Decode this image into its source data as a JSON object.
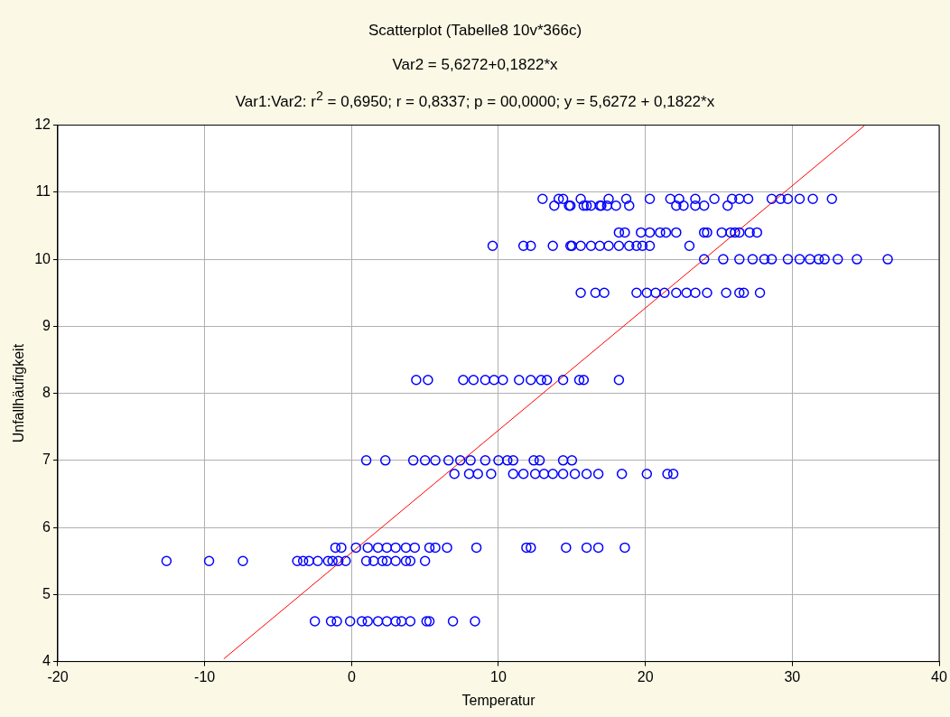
{
  "chart_data": {
    "type": "scatter",
    "title": "Scatterplot (Tabelle8 10v*366c)",
    "subtitle": "Var2 = 5,6272+0,1822*x",
    "annotations": [
      "Var1:Var2:  r$^{2}$ = 0,6950;  r = 0,8337; p = 00,0000;  y = 5,6272 + 0,1822*x"
    ],
    "xlabel": "Temperatur",
    "ylabel": "Unfallhäufigkeit",
    "xlim": [
      -20,
      40
    ],
    "xticks": [
      -20,
      -10,
      0,
      10,
      20,
      30,
      40
    ],
    "ylim": [
      4,
      12
    ],
    "yticks": [
      4,
      5,
      6,
      7,
      8,
      9,
      10,
      11,
      12
    ],
    "grid": true,
    "series": [
      {
        "color": "#0000ff",
        "marker": "circle",
        "x": [
          -2.5,
          -1.4,
          -1,
          -0.1,
          0.7,
          1.1,
          1.8,
          2.4,
          3,
          3.4,
          4,
          5.1,
          5.3,
          6.9,
          8.4,
          -12.6,
          -9.7,
          -7.4,
          -3.7,
          -3.3,
          -2.9,
          -2.3,
          -1.6,
          -1.3,
          -0.9,
          -0.4,
          1,
          1.5,
          2.1,
          2.4,
          3,
          3.7,
          4,
          5,
          -1.1,
          -0.7,
          0.3,
          1.1,
          1.8,
          2.4,
          3,
          3.7,
          4.3,
          5.3,
          5.7,
          6.5,
          8.5,
          11.9,
          12.2,
          14.6,
          16,
          16.8,
          18.6,
          7,
          8,
          8.6,
          9.5,
          11,
          11.7,
          12.5,
          13.1,
          13.7,
          14.4,
          15.2,
          16,
          16.8,
          18.4,
          20.1,
          21.5,
          21.9,
          1,
          2.3,
          4.2,
          5,
          5.7,
          6.6,
          7.4,
          8.1,
          9.1,
          10,
          10.6,
          11,
          12.4,
          12.8,
          14.4,
          15,
          4.4,
          5.2,
          7.6,
          8.3,
          9.1,
          9.7,
          10.3,
          11.4,
          12.2,
          12.9,
          13.3,
          14.4,
          15.5,
          15.8,
          18.2,
          15.6,
          16.6,
          17.2,
          19.4,
          20.1,
          20.7,
          21.3,
          22.1,
          22.8,
          23.4,
          24.2,
          25.5,
          26.4,
          26.7,
          27.8,
          24,
          25.3,
          26.4,
          27.3,
          28.1,
          28.6,
          29.7,
          30.5,
          31.2,
          31.8,
          32.2,
          33.1,
          34.4,
          36.5,
          9.6,
          11.7,
          12.2,
          13.7,
          14.9,
          15,
          15.6,
          16.3,
          16.9,
          17.5,
          18.2,
          18.9,
          19.4,
          19.8,
          20.3,
          23,
          18.2,
          18.6,
          19.7,
          20.3,
          21,
          21.4,
          22.1,
          24,
          24.2,
          25.2,
          25.8,
          26.1,
          26.4,
          27.1,
          27.6,
          13,
          14.1,
          14.4,
          15.6,
          17.5,
          18.7,
          20.3,
          21.7,
          22.3,
          23.4,
          24.7,
          25.9,
          26.4,
          27,
          28.6,
          29.2,
          29.7,
          30.5,
          31.4,
          32.7,
          13.8,
          14.9,
          16,
          16.9,
          14.8,
          15.8,
          16.3,
          17,
          17.4,
          18,
          18.9,
          22.1,
          22.6,
          23.4,
          24,
          25.6
        ],
        "values": [
          4.6,
          4.6,
          4.6,
          4.6,
          4.6,
          4.6,
          4.6,
          4.6,
          4.6,
          4.6,
          4.6,
          4.6,
          4.6,
          4.6,
          4.6,
          5.5,
          5.5,
          5.5,
          5.5,
          5.5,
          5.5,
          5.5,
          5.5,
          5.5,
          5.5,
          5.5,
          5.5,
          5.5,
          5.5,
          5.5,
          5.5,
          5.5,
          5.5,
          5.5,
          5.7,
          5.7,
          5.7,
          5.7,
          5.7,
          5.7,
          5.7,
          5.7,
          5.7,
          5.7,
          5.7,
          5.7,
          5.7,
          5.7,
          5.7,
          5.7,
          5.7,
          5.7,
          5.7,
          6.8,
          6.8,
          6.8,
          6.8,
          6.8,
          6.8,
          6.8,
          6.8,
          6.8,
          6.8,
          6.8,
          6.8,
          6.8,
          6.8,
          6.8,
          6.8,
          6.8,
          7,
          7,
          7,
          7,
          7,
          7,
          7,
          7,
          7,
          7,
          7,
          7,
          7,
          7,
          7,
          7,
          8.2,
          8.2,
          8.2,
          8.2,
          8.2,
          8.2,
          8.2,
          8.2,
          8.2,
          8.2,
          8.2,
          8.2,
          8.2,
          8.2,
          8.2,
          9.5,
          9.5,
          9.5,
          9.5,
          9.5,
          9.5,
          9.5,
          9.5,
          9.5,
          9.5,
          9.5,
          9.5,
          9.5,
          9.5,
          9.5,
          10,
          10,
          10,
          10,
          10,
          10,
          10,
          10,
          10,
          10,
          10,
          10,
          10,
          10,
          10.2,
          10.2,
          10.2,
          10.2,
          10.2,
          10.2,
          10.2,
          10.2,
          10.2,
          10.2,
          10.2,
          10.2,
          10.2,
          10.2,
          10.2,
          10.2,
          10.4,
          10.4,
          10.4,
          10.4,
          10.4,
          10.4,
          10.4,
          10.4,
          10.4,
          10.4,
          10.4,
          10.4,
          10.4,
          10.4,
          10.4,
          10.9,
          10.9,
          10.9,
          10.9,
          10.9,
          10.9,
          10.9,
          10.9,
          10.9,
          10.9,
          10.9,
          10.9,
          10.9,
          10.9,
          10.9,
          10.9,
          10.9,
          10.9,
          10.9,
          10.9,
          10.8,
          10.8,
          10.8,
          10.8,
          10.8,
          10.8,
          10.8,
          10.8,
          10.8,
          10.8,
          10.8,
          10.8,
          10.8,
          10.8,
          10.8,
          10.8
        ]
      },
      {
        "type": "line",
        "color": "#ff0000",
        "x": [
          -8.7,
          34.9
        ],
        "values": [
          4.04,
          11.99
        ]
      }
    ]
  }
}
